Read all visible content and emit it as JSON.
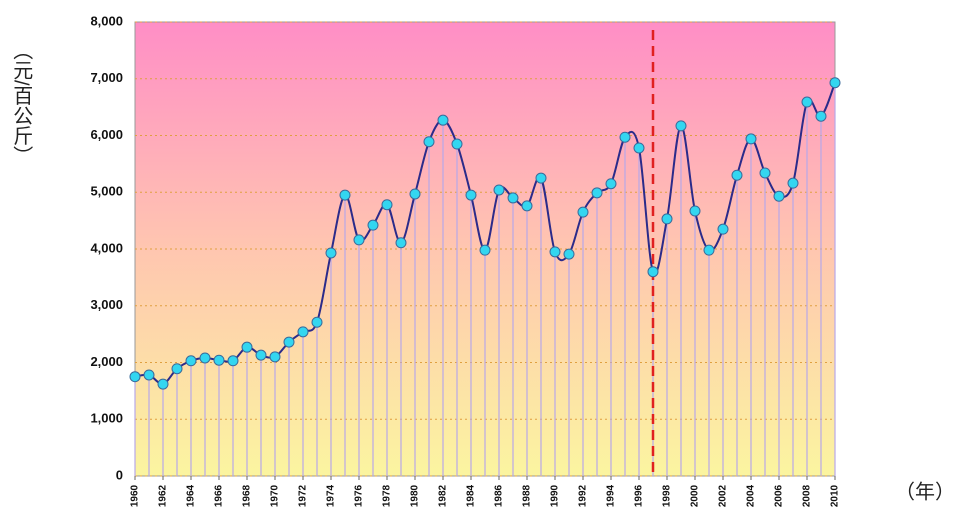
{
  "chart_data": {
    "type": "line",
    "y_label": "（元/百公斤）",
    "x_label": "（年）",
    "x": [
      1960,
      1961,
      1962,
      1963,
      1964,
      1965,
      1966,
      1967,
      1968,
      1969,
      1970,
      1971,
      1972,
      1973,
      1974,
      1975,
      1976,
      1977,
      1978,
      1979,
      1980,
      1981,
      1982,
      1983,
      1984,
      1985,
      1986,
      1987,
      1988,
      1989,
      1990,
      1991,
      1992,
      1993,
      1994,
      1995,
      1996,
      1997,
      1998,
      1999,
      2000,
      2001,
      2002,
      2003,
      2004,
      2005,
      2006,
      2007,
      2008,
      2009,
      2010
    ],
    "series": [
      {
        "color": "#2b2b8a",
        "marker_color": "#33d6f0",
        "values": [
          1750,
          1780,
          1620,
          1890,
          2030,
          2080,
          2040,
          2030,
          2270,
          2130,
          2100,
          2360,
          2540,
          2710,
          3930,
          4950,
          4160,
          4420,
          4780,
          4110,
          4970,
          5890,
          6270,
          5850,
          4950,
          3980,
          5040,
          4900,
          4760,
          5250,
          3950,
          3910,
          4650,
          4990,
          5150,
          5970,
          5780,
          3600,
          4530,
          6170,
          4670,
          3980,
          4350,
          5300,
          5940,
          5340,
          4930,
          5160,
          6590,
          6340,
          6930
        ]
      }
    ],
    "xlim": [
      1960,
      2010
    ],
    "xticks": [
      1960,
      1962,
      1964,
      1966,
      1968,
      1970,
      1972,
      1974,
      1976,
      1978,
      1980,
      1982,
      1984,
      1986,
      1988,
      1990,
      1992,
      1994,
      1996,
      1998,
      2000,
      2002,
      2004,
      2006,
      2008,
      2010
    ],
    "ylim": [
      0,
      8000
    ],
    "yticks": [
      0,
      {
        "value": 1000,
        "label": "1,000"
      },
      {
        "value": 2000,
        "label": "2,000"
      },
      {
        "value": 3000,
        "label": "3,000"
      },
      {
        "value": 4000,
        "label": "4,000"
      },
      {
        "value": 5000,
        "label": "5,000"
      },
      {
        "value": 6000,
        "label": "6,000"
      },
      {
        "value": 7000,
        "label": "7,000"
      },
      {
        "value": 8000,
        "label": "8,000"
      }
    ],
    "grid": true,
    "reference_line": {
      "x": 1997,
      "color": "#e02020"
    }
  }
}
